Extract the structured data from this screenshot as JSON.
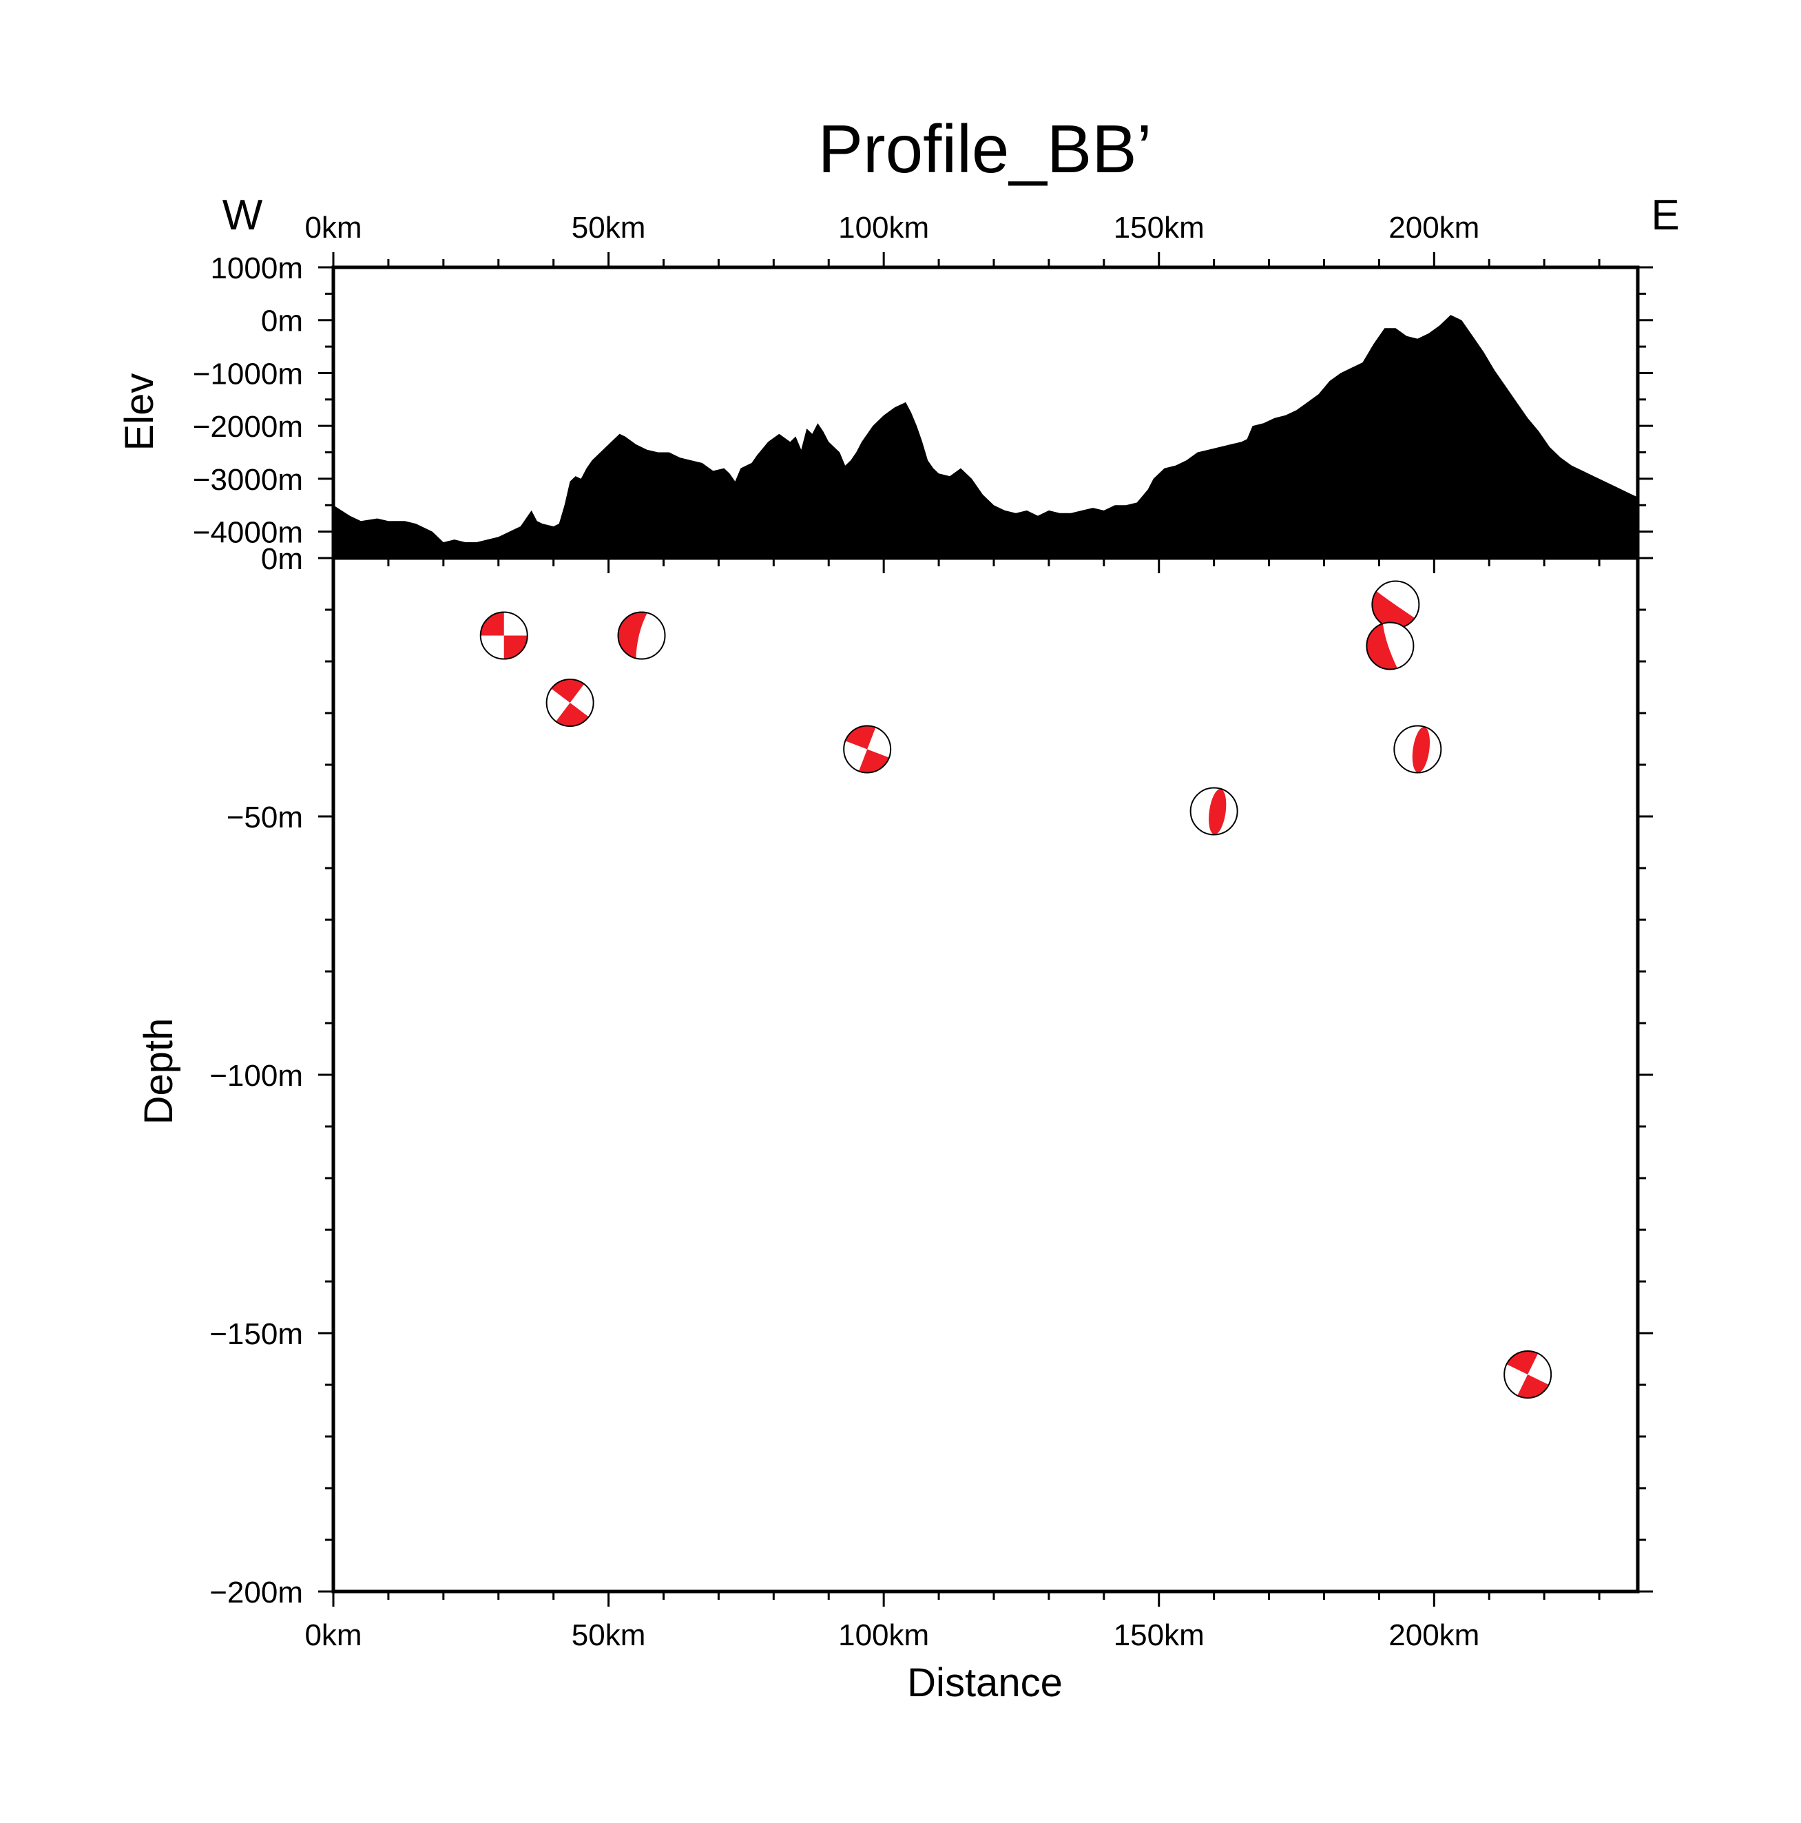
{
  "chart_data": {
    "type": "scatter",
    "title": "Profile_BB’",
    "direction_left": "W",
    "direction_right": "E",
    "x_axis": {
      "label": "Distance",
      "range": [
        0,
        237
      ],
      "ticks": [
        0,
        50,
        100,
        150,
        200
      ],
      "tick_labels": [
        "0km",
        "50km",
        "100km",
        "150km",
        "200km"
      ]
    },
    "elevation_panel": {
      "ylabel": "Elev",
      "ylim": [
        -4500,
        1000
      ],
      "ticks": [
        1000,
        0,
        -1000,
        -2000,
        -3000,
        -4000
      ],
      "tick_labels": [
        "1000m",
        "0m",
        "−1000m",
        "−2000m",
        "−3000m",
        "−4000m"
      ],
      "profile": {
        "x": [
          0,
          3,
          5,
          8,
          10,
          13,
          15,
          18,
          20,
          22,
          24,
          26,
          28,
          30,
          32,
          33,
          34,
          36,
          37,
          38,
          40,
          41,
          42,
          43,
          44,
          45,
          46,
          47,
          48,
          50,
          52,
          53,
          55,
          57,
          59,
          61,
          63,
          65,
          67,
          69,
          71,
          72,
          73,
          74,
          75,
          76,
          77,
          79,
          81,
          83,
          84,
          85,
          86,
          87,
          88,
          89,
          90,
          91,
          92,
          93,
          94,
          95,
          96,
          97,
          98,
          100,
          102,
          104,
          105,
          106,
          107,
          108,
          109,
          110,
          112,
          114,
          116,
          118,
          120,
          122,
          124,
          126,
          128,
          130,
          132,
          134,
          136,
          138,
          140,
          142,
          144,
          146,
          148,
          149,
          150,
          151,
          153,
          155,
          157,
          159,
          161,
          163,
          165,
          166,
          167,
          169,
          171,
          173,
          175,
          177,
          179,
          181,
          183,
          185,
          187,
          189,
          191,
          193,
          195,
          197,
          199,
          201,
          203,
          205,
          207,
          209,
          211,
          213,
          215,
          217,
          219,
          221,
          223,
          225,
          227,
          229,
          231,
          233,
          235,
          237
        ],
        "elev": [
          -3500,
          -3700,
          -3800,
          -3750,
          -3800,
          -3800,
          -3850,
          -4000,
          -4200,
          -4150,
          -4200,
          -4200,
          -4150,
          -4100,
          -4000,
          -3950,
          -3900,
          -3600,
          -3800,
          -3850,
          -3900,
          -3850,
          -3500,
          -3050,
          -2950,
          -3000,
          -2800,
          -2650,
          -2550,
          -2350,
          -2150,
          -2200,
          -2350,
          -2450,
          -2500,
          -2500,
          -2600,
          -2650,
          -2700,
          -2850,
          -2800,
          -2900,
          -3050,
          -2800,
          -2750,
          -2700,
          -2550,
          -2300,
          -2150,
          -2300,
          -2200,
          -2450,
          -2050,
          -2150,
          -1950,
          -2100,
          -2300,
          -2400,
          -2500,
          -2750,
          -2650,
          -2500,
          -2300,
          -2150,
          -2000,
          -1800,
          -1650,
          -1550,
          -1750,
          -2000,
          -2300,
          -2650,
          -2800,
          -2900,
          -2950,
          -2800,
          -3000,
          -3300,
          -3500,
          -3600,
          -3650,
          -3600,
          -3700,
          -3600,
          -3650,
          -3650,
          -3600,
          -3550,
          -3600,
          -3500,
          -3500,
          -3450,
          -3200,
          -3000,
          -2900,
          -2800,
          -2750,
          -2650,
          -2500,
          -2450,
          -2400,
          -2350,
          -2300,
          -2250,
          -2000,
          -1950,
          -1850,
          -1800,
          -1700,
          -1550,
          -1400,
          -1150,
          -1000,
          -900,
          -800,
          -450,
          -150,
          -150,
          -300,
          -350,
          -250,
          -100,
          100,
          0,
          -300,
          -600,
          -950,
          -1250,
          -1550,
          -1850,
          -2100,
          -2400,
          -2600,
          -2750,
          -2850,
          -2950,
          -3050,
          -3150,
          -3250,
          -3350
        ]
      }
    },
    "depth_panel": {
      "ylabel": "Depth",
      "ylim": [
        -200,
        0
      ],
      "ticks": [
        0,
        -50,
        -100,
        -150,
        -200
      ],
      "tick_labels": [
        "0m",
        "−50m",
        "−100m",
        "−150m",
        "−200m"
      ],
      "events": [
        {
          "x": 31,
          "depth": -15,
          "mech": "strike-slip"
        },
        {
          "x": 43,
          "depth": -28,
          "mech": "oblique"
        },
        {
          "x": 56,
          "depth": -15,
          "mech": "thrust"
        },
        {
          "x": 97,
          "depth": -37,
          "mech": "oblique"
        },
        {
          "x": 160,
          "depth": -49,
          "mech": "normal"
        },
        {
          "x": 193,
          "depth": -9,
          "mech": "thrust"
        },
        {
          "x": 192,
          "depth": -17,
          "mech": "thrust"
        },
        {
          "x": 197,
          "depth": -37,
          "mech": "normal"
        },
        {
          "x": 217,
          "depth": -158,
          "mech": "strike-slip"
        }
      ]
    },
    "colors": {
      "beachball_fill": "#ee1c25",
      "outline": "#000000",
      "terrain": "#000000"
    },
    "grid": false
  }
}
